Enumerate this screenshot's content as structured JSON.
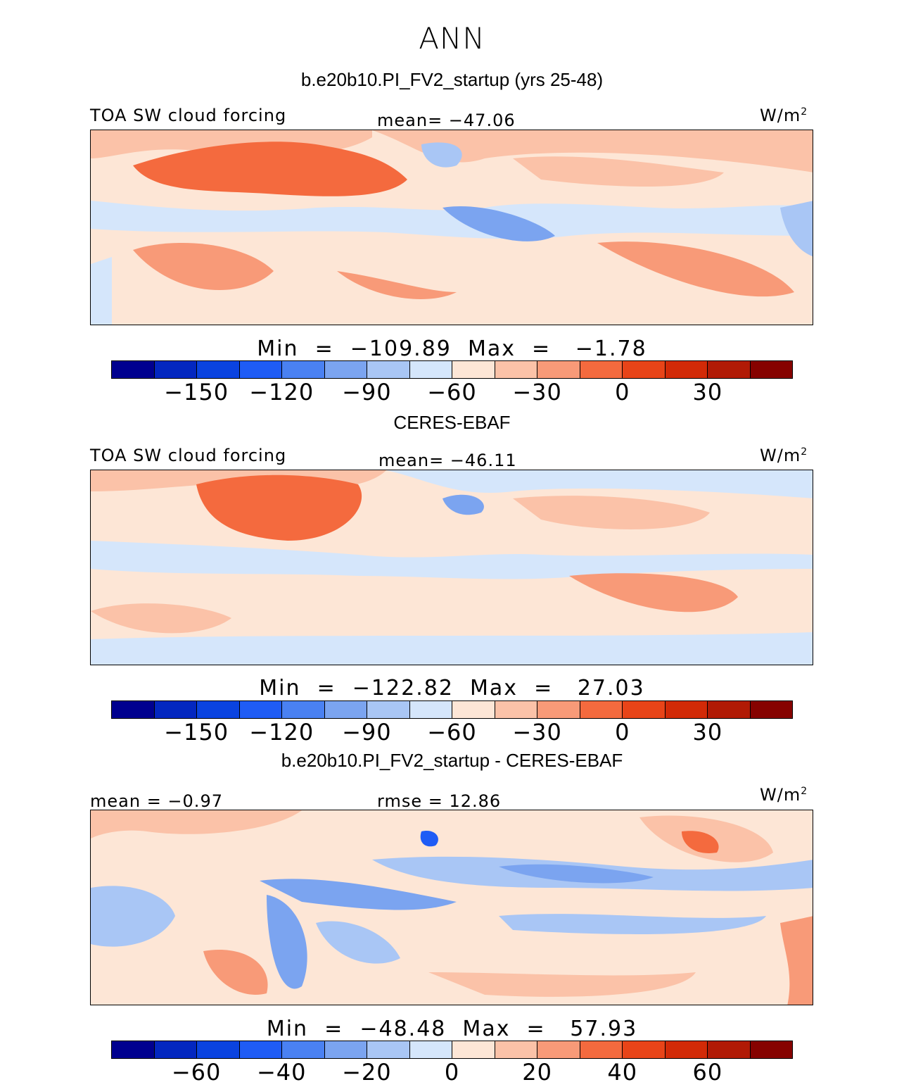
{
  "figure_title": "ANN",
  "units_label": "W/m",
  "units_sup": "2",
  "panels": [
    {
      "title": "b.e20b10.PI_FV2_startup (yrs 25-48)",
      "variable": "TOA SW cloud forcing",
      "stat_center": "mean= −47.06",
      "min_max": "Min  =  −109.89  Max  =   −1.78"
    },
    {
      "title": "CERES-EBAF",
      "variable": "TOA SW cloud forcing",
      "stat_center": "mean= −46.11",
      "min_max": "Min  =  −122.82  Max  =   27.03"
    },
    {
      "title": "b.e20b10.PI_FV2_startup - CERES-EBAF",
      "stat_left": "mean =   −0.97",
      "stat_center": "rmse  =   12.86",
      "min_max": "Min  =  −48.48  Max  =   57.93"
    }
  ],
  "chart_data": [
    {
      "type": "heatmap",
      "title": "b.e20b10.PI_FV2_startup (yrs 25-48)",
      "variable": "TOA SW cloud forcing",
      "units": "W/m2",
      "mean": -47.06,
      "min": -109.89,
      "max": -1.78,
      "colorbar_levels": [
        -165,
        -150,
        -135,
        -120,
        -105,
        -90,
        -75,
        -60,
        -45,
        -30,
        -15,
        0,
        15,
        30,
        45
      ],
      "colorbar_tick_labels": [
        "−150",
        "−120",
        "−90",
        "−60",
        "−30",
        "0",
        "30"
      ],
      "colorbar_tick_values": [
        -150,
        -120,
        -90,
        -60,
        -30,
        0,
        30
      ]
    },
    {
      "type": "heatmap",
      "title": "CERES-EBAF",
      "variable": "TOA SW cloud forcing",
      "units": "W/m2",
      "mean": -46.11,
      "min": -122.82,
      "max": 27.03,
      "colorbar_levels": [
        -165,
        -150,
        -135,
        -120,
        -105,
        -90,
        -75,
        -60,
        -45,
        -30,
        -15,
        0,
        15,
        30,
        45
      ],
      "colorbar_tick_labels": [
        "−150",
        "−120",
        "−90",
        "−60",
        "−30",
        "0",
        "30"
      ],
      "colorbar_tick_values": [
        -150,
        -120,
        -90,
        -60,
        -30,
        0,
        30
      ]
    },
    {
      "type": "heatmap",
      "title": "b.e20b10.PI_FV2_startup - CERES-EBAF",
      "units": "W/m2",
      "mean": -0.97,
      "rmse": 12.86,
      "min": -48.48,
      "max": 57.93,
      "colorbar_levels": [
        -70,
        -60,
        -50,
        -40,
        -30,
        -20,
        -10,
        0,
        10,
        20,
        30,
        40,
        50,
        60,
        70
      ],
      "colorbar_tick_labels": [
        "−60",
        "−40",
        "−20",
        "0",
        "20",
        "40",
        "60"
      ],
      "colorbar_tick_values": [
        -60,
        -40,
        -20,
        0,
        20,
        40,
        60
      ]
    }
  ],
  "colorbar_colors": [
    "#00008f",
    "#0327c0",
    "#0a43e0",
    "#1f5cf5",
    "#4a81f2",
    "#7ba4f0",
    "#a9c6f5",
    "#d5e6fb",
    "#fde6d6",
    "#fbc2a8",
    "#f89a78",
    "#f46a3e",
    "#e84418",
    "#d22a07",
    "#b11a05",
    "#860200"
  ]
}
